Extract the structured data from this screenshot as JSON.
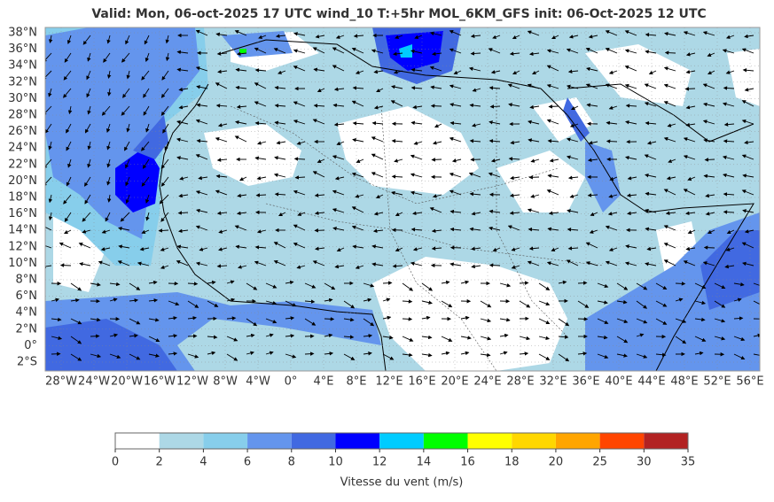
{
  "map": {
    "title": "Valid: Mon, 06-oct-2025   17 UTC   wind_10   T:+5hr   MOL_6KM_GFS   init: 06-Oct-2025    12 UTC",
    "lat_labels": [
      "38°N",
      "36°N",
      "34°N",
      "32°N",
      "30°N",
      "28°N",
      "26°N",
      "24°N",
      "22°N",
      "20°N",
      "18°N",
      "16°N",
      "14°N",
      "12°N",
      "10°N",
      "8°N",
      "6°N",
      "4°N",
      "2°N",
      "0°",
      "2°S"
    ],
    "lon_labels": [
      "28°W",
      "24°W",
      "20°W",
      "16°W",
      "12°W",
      "8°W",
      "4°W",
      "0°",
      "4°E",
      "8°E",
      "12°E",
      "16°E",
      "20°E",
      "24°E",
      "28°E",
      "32°E",
      "36°E",
      "40°E",
      "44°E",
      "48°E",
      "52°E",
      "56°E"
    ],
    "colorbar": {
      "ticks": [
        0,
        2,
        4,
        6,
        8,
        10,
        12,
        14,
        16,
        18,
        20,
        25,
        30,
        35
      ],
      "colors": [
        "#ffffff",
        "#add8e6",
        "#87ceeb",
        "#6495ed",
        "#4169e1",
        "#0000ff",
        "#00ccff",
        "#00ff00",
        "#ffff00",
        "#ffd700",
        "#ffa500",
        "#ff4500",
        "#b22222"
      ],
      "label": "Vitesse du vent (m/s)"
    }
  }
}
